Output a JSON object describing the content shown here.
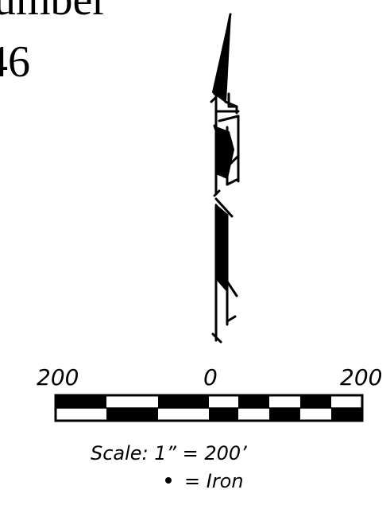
{
  "header": {
    "title_line1": "umber",
    "title_line2": "46"
  },
  "scale_bar": {
    "left_label": "200",
    "center_label": "0",
    "right_label": "200",
    "caption": "Scale:  1” = 200’",
    "legend_text": "= Iron",
    "legend_icon": "iron-dot"
  },
  "colors": {
    "ink": "#000000",
    "paper": "#ffffff"
  }
}
